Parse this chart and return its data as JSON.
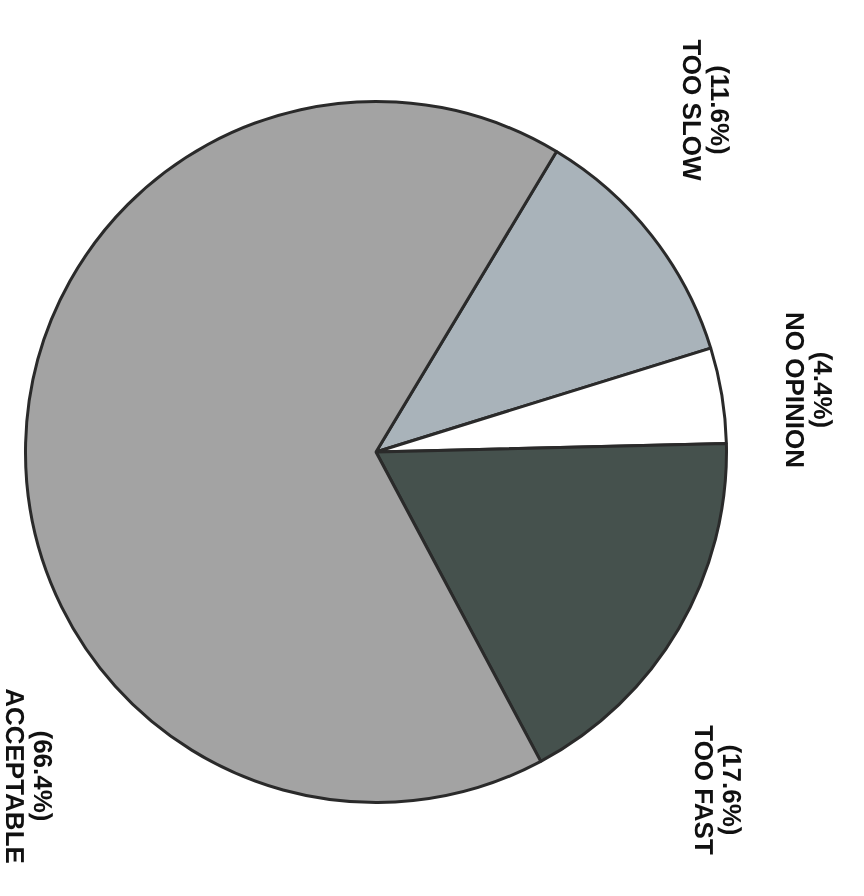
{
  "chart_data": {
    "type": "pie",
    "categories": [
      "TOO SLOW",
      "NO OPINION",
      "TOO FAST",
      "ACCEPTABLE"
    ],
    "values": [
      11.6,
      4.4,
      17.6,
      66.4
    ],
    "value_labels": [
      "(11.6%)",
      "(4.4%)",
      "(17.6%)",
      "(66.4%)"
    ],
    "colors": [
      "#a9b3ba",
      "#ffffff",
      "#45514d",
      "#a3a3a3"
    ],
    "legend": false
  }
}
